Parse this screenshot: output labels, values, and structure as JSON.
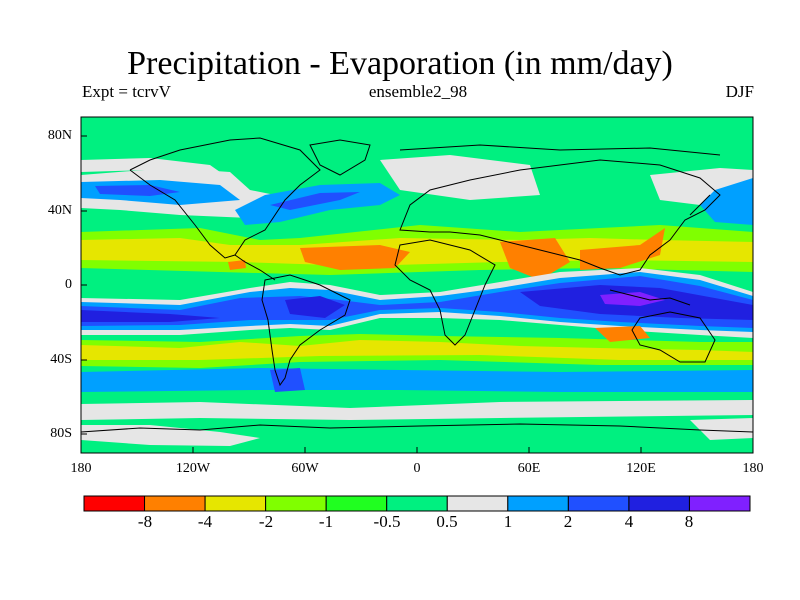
{
  "title": "Precipitation - Evaporation (in mm/day)",
  "left_subtitle": "Expt = tcrvV",
  "center_subtitle": "ensemble2_98",
  "right_subtitle": "DJF",
  "map": {
    "projection": "cylindrical equidistant",
    "lon_range": [
      -180,
      180
    ],
    "lat_range": [
      -90,
      90
    ],
    "y_tick_labels": [
      "80N",
      "40N",
      "0",
      "40S",
      "80S"
    ],
    "x_tick_labels": [
      "180",
      "120W",
      "60W",
      "0",
      "60E",
      "120E",
      "180"
    ]
  },
  "colorbar": {
    "colors": [
      "#ff0000",
      "#ff8000",
      "#e6e600",
      "#80ff00",
      "#20ff20",
      "#00f080",
      "#e6e6e6",
      "#00a0ff",
      "#2050ff",
      "#2020e0",
      "#8020ff"
    ],
    "labels": [
      "-8",
      "-4",
      "-2",
      "-1",
      "-0.5",
      "0.5",
      "1",
      "2",
      "4",
      "8"
    ]
  }
}
